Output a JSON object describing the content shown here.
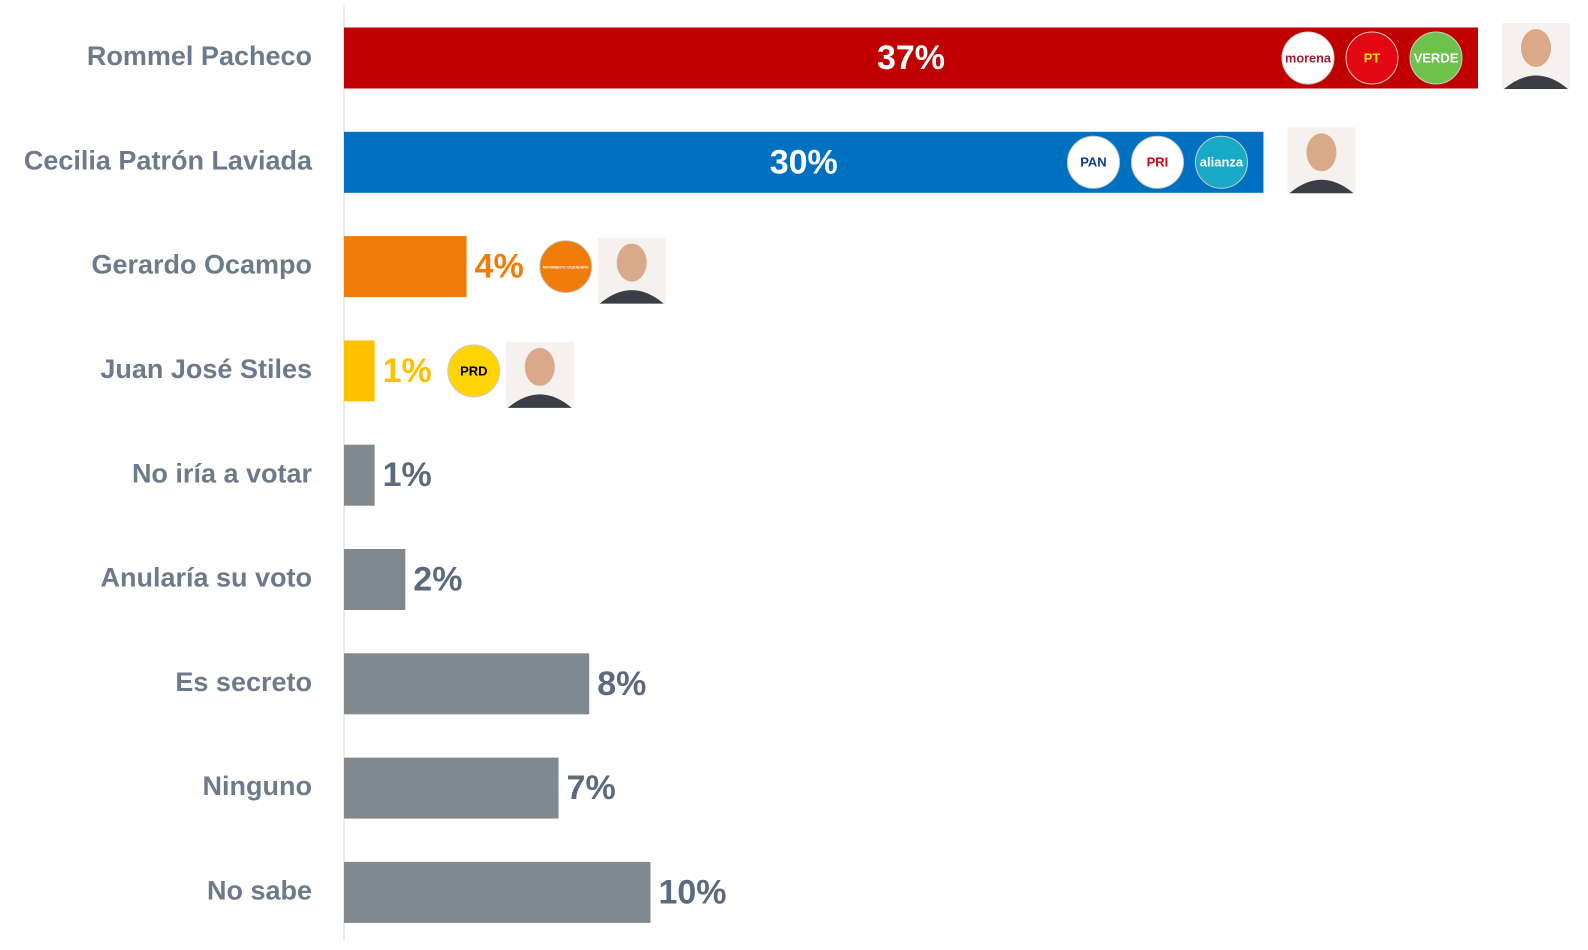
{
  "chart_data": {
    "type": "bar",
    "orientation": "horizontal",
    "categories": [
      "Rommel Pacheco",
      "Cecilia Patrón Laviada",
      "Gerardo Ocampo",
      "Juan José Stiles",
      "No iría a votar",
      "Anularía su voto",
      "Es secreto",
      "Ninguno",
      "No sabe"
    ],
    "values": [
      37,
      30,
      4,
      1,
      1,
      2,
      8,
      7,
      10
    ],
    "value_labels": [
      "37%",
      "30%",
      "4%",
      "1%",
      "1%",
      "2%",
      "8%",
      "7%",
      "10%"
    ],
    "colors": [
      "#c00000",
      "#0070c0",
      "#f07c0a",
      "#ffc000",
      "#808890",
      "#808890",
      "#808890",
      "#808890",
      "#808890"
    ],
    "label_colors": [
      "#ffffff",
      "#ffffff",
      "#f07c0a",
      "#ffc000",
      "#5b6b7e",
      "#5b6b7e",
      "#5b6b7e",
      "#5b6b7e",
      "#5b6b7e"
    ],
    "xlim": [
      0,
      37
    ],
    "party_logos": [
      [
        {
          "text": "morena",
          "color": "#ffffff",
          "text_color": "#a6192e"
        },
        {
          "text": "PT",
          "color": "#e30613",
          "text_color": "#ffe600"
        },
        {
          "text": "VERDE",
          "color": "#6cc24a",
          "text_color": "#ffffff"
        }
      ],
      [
        {
          "text": "PAN",
          "color": "#ffffff",
          "text_color": "#0a3d91"
        },
        {
          "text": "PRI",
          "color": "#ffffff",
          "text_color": "#d0021b"
        },
        {
          "text": "alianza",
          "color": "#17a9c6",
          "text_color": "#ffffff"
        }
      ],
      [
        {
          "text": "MOVIMIENTO CIUDADANO",
          "color": "#f07c0a",
          "text_color": "#ffffff"
        }
      ],
      [
        {
          "text": "PRD",
          "color": "#ffd400",
          "text_color": "#000000"
        }
      ],
      [],
      [],
      [],
      [],
      []
    ]
  }
}
